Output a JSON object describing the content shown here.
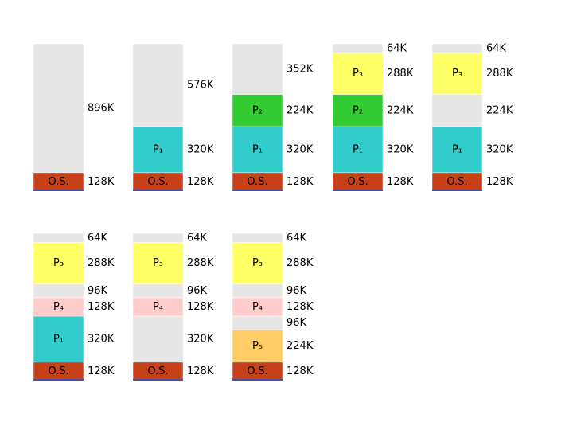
{
  "columns": [
    {
      "blocks": [
        {
          "size": "896K",
          "color": "#e6e6e6"
        },
        {
          "label": "O.S.",
          "size": "128K",
          "color": "#c8401a"
        }
      ]
    },
    {
      "blocks": [
        {
          "size": "576K",
          "color": "#e6e6e6"
        },
        {
          "label": "P₁",
          "size": "320K",
          "color": "#33cccc"
        },
        {
          "label": "O.S.",
          "size": "128K",
          "color": "#c8401a"
        }
      ]
    },
    {
      "blocks": [
        {
          "size": "352K",
          "color": "#e6e6e6"
        },
        {
          "label": "P₂",
          "size": "224K",
          "color": "#33cc33"
        },
        {
          "label": "P₁",
          "size": "320K",
          "color": "#33cccc"
        },
        {
          "label": "O.S.",
          "size": "128K",
          "color": "#c8401a"
        }
      ]
    },
    {
      "blocks": [
        {
          "size": "64K",
          "color": "#e6e6e6"
        },
        {
          "label": "P₃",
          "size": "288K",
          "color": "#ffff66"
        },
        {
          "label": "P₂",
          "size": "224K",
          "color": "#33cc33"
        },
        {
          "label": "P₁",
          "size": "320K",
          "color": "#33cccc"
        },
        {
          "label": "O.S.",
          "size": "128K",
          "color": "#c8401a"
        }
      ]
    },
    {
      "blocks": [
        {
          "size": "64K",
          "color": "#e6e6e6"
        },
        {
          "label": "P₃",
          "size": "288K",
          "color": "#ffff66"
        },
        {
          "size": "224K",
          "color": "#e6e6e6"
        },
        {
          "label": "P₁",
          "size": "320K",
          "color": "#33cccc"
        },
        {
          "label": "O.S.",
          "size": "128K",
          "color": "#c8401a"
        }
      ]
    },
    {
      "blocks": [
        {
          "size": "64K",
          "color": "#e6e6e6"
        },
        {
          "label": "P₃",
          "size": "288K",
          "color": "#ffff66"
        },
        {
          "size": "96K",
          "color": "#e6e6e6"
        },
        {
          "label": "P₄",
          "size": "128K",
          "color": "#ffcccc"
        },
        {
          "label": "P₁",
          "size": "320K",
          "color": "#33cccc"
        },
        {
          "label": "O.S.",
          "size": "128K",
          "color": "#c8401a"
        }
      ]
    },
    {
      "blocks": [
        {
          "size": "64K",
          "color": "#e6e6e6"
        },
        {
          "label": "P₃",
          "size": "288K",
          "color": "#ffff66"
        },
        {
          "size": "96K",
          "color": "#e6e6e6"
        },
        {
          "label": "P₄",
          "size": "128K",
          "color": "#ffcccc"
        },
        {
          "size": "320K",
          "color": "#e6e6e6"
        },
        {
          "label": "O.S.",
          "size": "128K",
          "color": "#c8401a"
        }
      ]
    },
    {
      "blocks": [
        {
          "size": "64K",
          "color": "#e6e6e6"
        },
        {
          "label": "P₃",
          "size": "288K",
          "color": "#ffff66"
        },
        {
          "size": "96K",
          "color": "#e6e6e6"
        },
        {
          "label": "P₄",
          "size": "128K",
          "color": "#ffcccc"
        },
        {
          "size": "96K",
          "color": "#e6e6e6"
        },
        {
          "label": "P₅",
          "size": "224K",
          "color": "#ffcc66"
        },
        {
          "label": "O.S.",
          "size": "128K",
          "color": "#c8401a"
        }
      ]
    }
  ]
}
